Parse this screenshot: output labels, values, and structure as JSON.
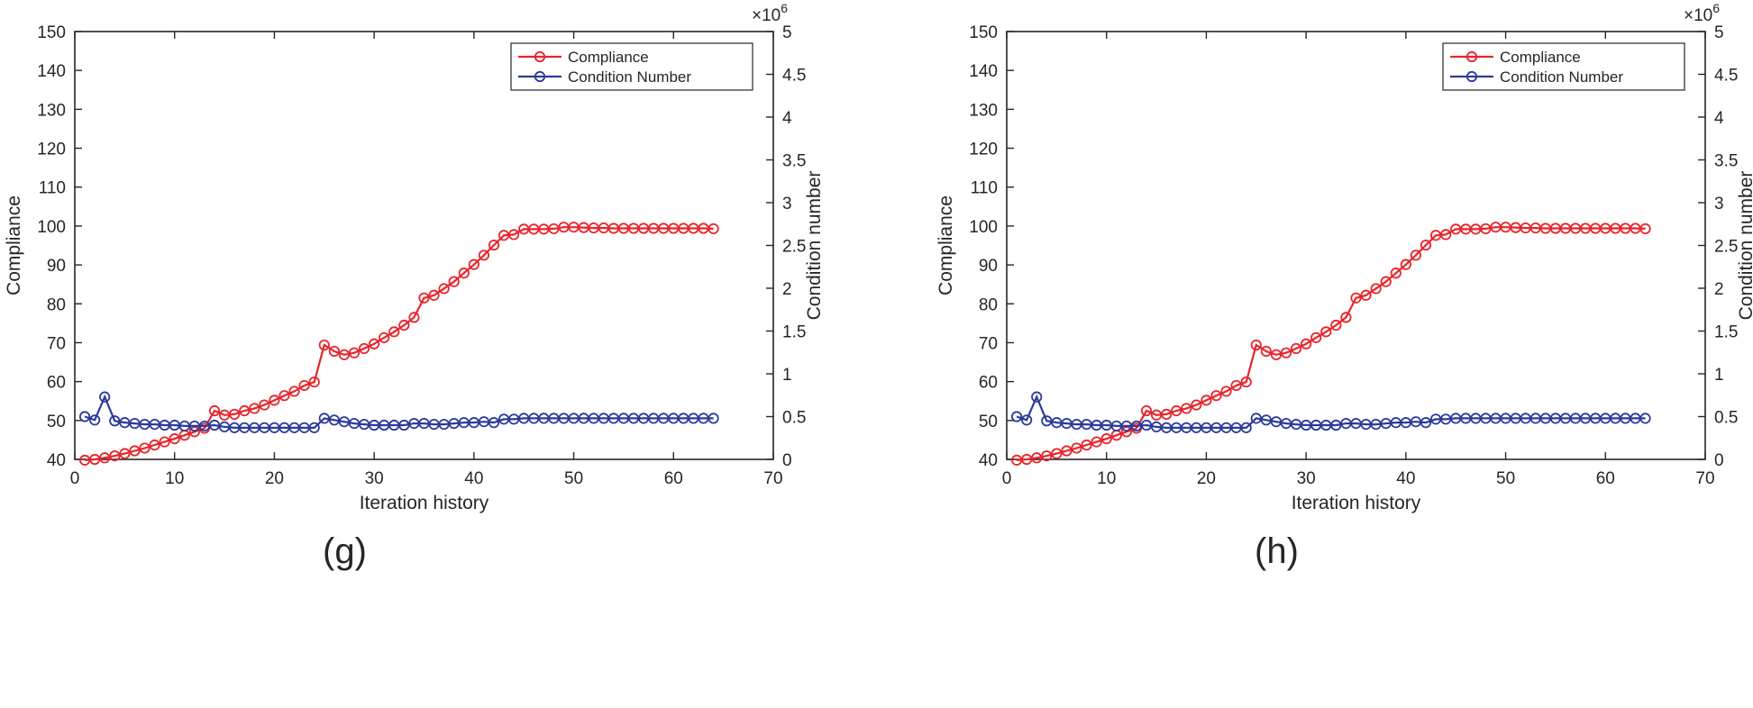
{
  "chart_data": [
    {
      "type": "line",
      "panel_label": "(g)",
      "xlabel": "Iteration history",
      "ylabel": "Compliance",
      "y2label": "Condition number",
      "y2_exponent": "×10",
      "y2_exponent_power": "6",
      "xlim": [
        0,
        70
      ],
      "ylim": [
        40,
        150
      ],
      "y2lim": [
        0,
        5
      ],
      "xticks": [
        "0",
        "10",
        "20",
        "30",
        "40",
        "50",
        "60",
        "70"
      ],
      "yticks": [
        "40",
        "50",
        "60",
        "70",
        "80",
        "90",
        "100",
        "110",
        "120",
        "130",
        "140",
        "150"
      ],
      "y2ticks": [
        "0",
        "0.5",
        "1",
        "1.5",
        "2",
        "2.5",
        "3",
        "3.5",
        "4",
        "4.5",
        "5"
      ],
      "legend_position": "top-right",
      "colors": {
        "compliance": "#e8242b",
        "condition": "#2b3a9b"
      },
      "series": [
        {
          "name": "Compliance",
          "axis": "left",
          "x": [
            1,
            2,
            3,
            4,
            5,
            6,
            7,
            8,
            9,
            10,
            11,
            12,
            13,
            14,
            15,
            16,
            17,
            18,
            19,
            20,
            21,
            22,
            23,
            24,
            25,
            26,
            27,
            28,
            29,
            30,
            31,
            32,
            33,
            34,
            35,
            36,
            37,
            38,
            39,
            40,
            41,
            42,
            43,
            44,
            45,
            46,
            47,
            48,
            49,
            50,
            51,
            52,
            53,
            54,
            55,
            56,
            57,
            58,
            59,
            60,
            61,
            62,
            63,
            64
          ],
          "values": [
            39.8,
            40.0,
            40.4,
            40.9,
            41.5,
            42.2,
            42.9,
            43.7,
            44.5,
            45.3,
            46.2,
            47.1,
            48.0,
            52.5,
            51.4,
            51.6,
            52.5,
            53.1,
            54.0,
            55.2,
            56.4,
            57.5,
            59.0,
            59.9,
            69.4,
            67.8,
            66.9,
            67.4,
            68.5,
            69.7,
            71.3,
            72.8,
            74.5,
            76.5,
            81.5,
            82.2,
            83.9,
            85.7,
            87.9,
            90.1,
            92.5,
            95.1,
            97.6,
            97.8,
            99.2,
            99.2,
            99.2,
            99.3,
            99.7,
            99.7,
            99.6,
            99.5,
            99.5,
            99.4,
            99.4,
            99.4,
            99.4,
            99.4,
            99.4,
            99.4,
            99.4,
            99.4,
            99.4,
            99.3
          ]
        },
        {
          "name": "Condition Number",
          "axis": "right",
          "x": [
            1,
            2,
            3,
            4,
            5,
            6,
            7,
            8,
            9,
            10,
            11,
            12,
            13,
            14,
            15,
            16,
            17,
            18,
            19,
            20,
            21,
            22,
            23,
            24,
            25,
            26,
            27,
            28,
            29,
            30,
            31,
            32,
            33,
            34,
            35,
            36,
            37,
            38,
            39,
            40,
            41,
            42,
            43,
            44,
            45,
            46,
            47,
            48,
            49,
            50,
            51,
            52,
            53,
            54,
            55,
            56,
            57,
            58,
            59,
            60,
            61,
            62,
            63,
            64
          ],
          "values": [
            0.5,
            0.46,
            0.73,
            0.45,
            0.43,
            0.42,
            0.41,
            0.41,
            0.4,
            0.4,
            0.39,
            0.39,
            0.39,
            0.4,
            0.38,
            0.37,
            0.37,
            0.37,
            0.37,
            0.37,
            0.37,
            0.37,
            0.37,
            0.37,
            0.48,
            0.46,
            0.44,
            0.42,
            0.41,
            0.4,
            0.4,
            0.4,
            0.4,
            0.42,
            0.42,
            0.41,
            0.41,
            0.42,
            0.43,
            0.43,
            0.44,
            0.43,
            0.47,
            0.47,
            0.48,
            0.48,
            0.48,
            0.48,
            0.48,
            0.48,
            0.48,
            0.48,
            0.48,
            0.48,
            0.48,
            0.48,
            0.48,
            0.48,
            0.48,
            0.48,
            0.48,
            0.48,
            0.48,
            0.48
          ]
        }
      ]
    },
    {
      "type": "line",
      "panel_label": "(h)",
      "xlabel": "Iteration history",
      "ylabel": "Compliance",
      "y2label": "Condition number",
      "y2_exponent": "×10",
      "y2_exponent_power": "6",
      "xlim": [
        0,
        70
      ],
      "ylim": [
        40,
        150
      ],
      "y2lim": [
        0,
        5
      ],
      "xticks": [
        "0",
        "10",
        "20",
        "30",
        "40",
        "50",
        "60",
        "70"
      ],
      "yticks": [
        "40",
        "50",
        "60",
        "70",
        "80",
        "90",
        "100",
        "110",
        "120",
        "130",
        "140",
        "150"
      ],
      "y2ticks": [
        "0",
        "0.5",
        "1",
        "1.5",
        "2",
        "2.5",
        "3",
        "3.5",
        "4",
        "4.5",
        "5"
      ],
      "legend_position": "top-right",
      "colors": {
        "compliance": "#e8242b",
        "condition": "#2b3a9b"
      },
      "series": [
        {
          "name": "Compliance",
          "axis": "left",
          "x": [
            1,
            2,
            3,
            4,
            5,
            6,
            7,
            8,
            9,
            10,
            11,
            12,
            13,
            14,
            15,
            16,
            17,
            18,
            19,
            20,
            21,
            22,
            23,
            24,
            25,
            26,
            27,
            28,
            29,
            30,
            31,
            32,
            33,
            34,
            35,
            36,
            37,
            38,
            39,
            40,
            41,
            42,
            43,
            44,
            45,
            46,
            47,
            48,
            49,
            50,
            51,
            52,
            53,
            54,
            55,
            56,
            57,
            58,
            59,
            60,
            61,
            62,
            63,
            64
          ],
          "values": [
            39.8,
            40.0,
            40.4,
            40.9,
            41.5,
            42.2,
            42.9,
            43.7,
            44.5,
            45.3,
            46.2,
            47.1,
            48.0,
            52.5,
            51.4,
            51.6,
            52.5,
            53.1,
            54.0,
            55.2,
            56.4,
            57.5,
            59.0,
            59.9,
            69.4,
            67.8,
            66.9,
            67.4,
            68.5,
            69.7,
            71.3,
            72.8,
            74.5,
            76.5,
            81.5,
            82.2,
            83.9,
            85.7,
            87.9,
            90.1,
            92.5,
            95.1,
            97.6,
            97.8,
            99.2,
            99.2,
            99.2,
            99.3,
            99.7,
            99.7,
            99.6,
            99.5,
            99.5,
            99.4,
            99.4,
            99.4,
            99.4,
            99.4,
            99.4,
            99.4,
            99.4,
            99.4,
            99.4,
            99.3
          ]
        },
        {
          "name": "Condition Number",
          "axis": "right",
          "x": [
            1,
            2,
            3,
            4,
            5,
            6,
            7,
            8,
            9,
            10,
            11,
            12,
            13,
            14,
            15,
            16,
            17,
            18,
            19,
            20,
            21,
            22,
            23,
            24,
            25,
            26,
            27,
            28,
            29,
            30,
            31,
            32,
            33,
            34,
            35,
            36,
            37,
            38,
            39,
            40,
            41,
            42,
            43,
            44,
            45,
            46,
            47,
            48,
            49,
            50,
            51,
            52,
            53,
            54,
            55,
            56,
            57,
            58,
            59,
            60,
            61,
            62,
            63,
            64
          ],
          "values": [
            0.5,
            0.46,
            0.73,
            0.45,
            0.43,
            0.42,
            0.41,
            0.41,
            0.4,
            0.4,
            0.39,
            0.39,
            0.39,
            0.4,
            0.38,
            0.37,
            0.37,
            0.37,
            0.37,
            0.37,
            0.37,
            0.37,
            0.37,
            0.37,
            0.48,
            0.46,
            0.44,
            0.42,
            0.41,
            0.4,
            0.4,
            0.4,
            0.4,
            0.42,
            0.42,
            0.41,
            0.41,
            0.42,
            0.43,
            0.43,
            0.44,
            0.43,
            0.47,
            0.47,
            0.48,
            0.48,
            0.48,
            0.48,
            0.48,
            0.48,
            0.48,
            0.48,
            0.48,
            0.48,
            0.48,
            0.48,
            0.48,
            0.48,
            0.48,
            0.48,
            0.48,
            0.48,
            0.48,
            0.48
          ]
        }
      ]
    }
  ]
}
